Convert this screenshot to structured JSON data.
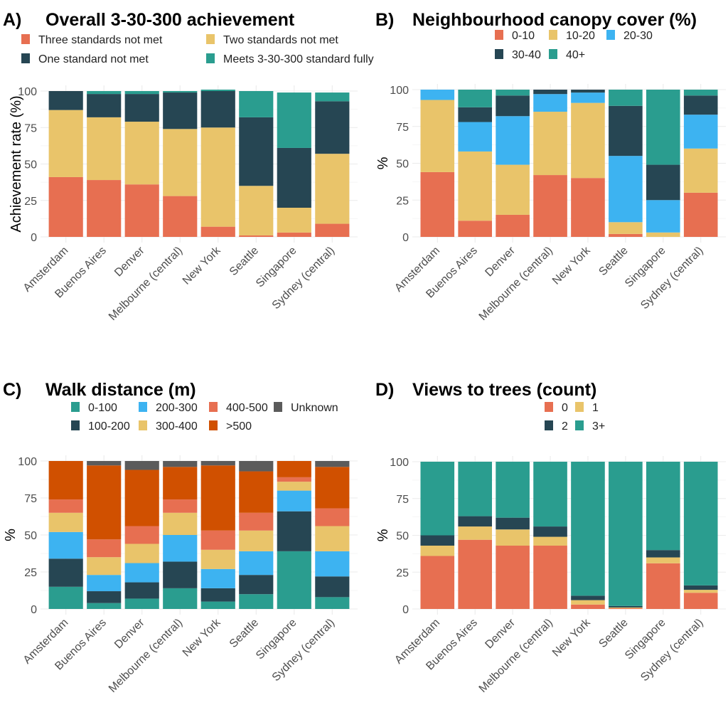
{
  "colors": {
    "salmon": "#E76F51",
    "yellow": "#E9C46A",
    "dark": "#264653",
    "teal": "#2A9D8F",
    "blue": "#3DB3F1",
    "orange": "#D05000",
    "gray": "#5B5B5B"
  },
  "chart_data": [
    {
      "id": "A",
      "type": "bar",
      "stacked": true,
      "panel_letter": "A)",
      "title": "Overall 3-30-300 achievement",
      "xlabel": "",
      "ylabel": "Achievement rate (%)",
      "ylim": [
        0,
        100
      ],
      "yticks": [
        "0",
        "25",
        "50",
        "75",
        "100"
      ],
      "grid": true,
      "legend_position": "top",
      "categories": [
        "Amsterdam",
        "Buenos Aires",
        "Denver",
        "Melbourne (central)",
        "New York",
        "Seattle",
        "Singapore",
        "Sydney (central)"
      ],
      "legend": [
        {
          "label": "Three standards not met",
          "color_key": "salmon"
        },
        {
          "label": "Two standards not met",
          "color_key": "yellow"
        },
        {
          "label": "One standard not met",
          "color_key": "dark"
        },
        {
          "label": "Meets 3-30-300 standard fully",
          "color_key": "teal"
        }
      ],
      "series": [
        {
          "name": "Three standards not met",
          "color_key": "salmon",
          "values": [
            41,
            39,
            36,
            28,
            7,
            1,
            3,
            9
          ]
        },
        {
          "name": "Two standards not met",
          "color_key": "yellow",
          "values": [
            46,
            43,
            43,
            46,
            68,
            34,
            17,
            48
          ]
        },
        {
          "name": "One standard not met",
          "color_key": "dark",
          "values": [
            13,
            16,
            19,
            25,
            25,
            47,
            41,
            36
          ]
        },
        {
          "name": "Meets 3-30-300 standard fully",
          "color_key": "teal",
          "values": [
            0,
            2,
            2,
            1,
            1,
            18,
            38,
            6
          ]
        }
      ]
    },
    {
      "id": "B",
      "type": "bar",
      "stacked": true,
      "panel_letter": "B)",
      "title": "Neighbourhood canopy cover (%)",
      "xlabel": "",
      "ylabel": "%",
      "ylim": [
        0,
        100
      ],
      "yticks": [
        "0",
        "25",
        "50",
        "75",
        "100"
      ],
      "grid": true,
      "legend_position": "top",
      "categories": [
        "Amsterdam",
        "Buenos Aires",
        "Denver",
        "Melbourne (central)",
        "New York",
        "Seattle",
        "Singapore",
        "Sydney (central)"
      ],
      "legend": [
        {
          "label": "0-10",
          "color_key": "salmon"
        },
        {
          "label": "10-20",
          "color_key": "yellow"
        },
        {
          "label": "20-30",
          "color_key": "blue"
        },
        {
          "label": "30-40",
          "color_key": "dark"
        },
        {
          "label": "40+",
          "color_key": "teal"
        }
      ],
      "series": [
        {
          "name": "0-10",
          "color_key": "salmon",
          "values": [
            44,
            11,
            15,
            42,
            40,
            2,
            0,
            30
          ]
        },
        {
          "name": "10-20",
          "color_key": "yellow",
          "values": [
            49,
            47,
            34,
            43,
            51,
            8,
            3,
            30
          ]
        },
        {
          "name": "20-30",
          "color_key": "blue",
          "values": [
            7,
            20,
            33,
            12,
            7,
            45,
            22,
            23
          ]
        },
        {
          "name": "30-40",
          "color_key": "dark",
          "values": [
            0,
            10,
            14,
            3,
            2,
            34,
            24,
            13
          ]
        },
        {
          "name": "40+",
          "color_key": "teal",
          "values": [
            0,
            12,
            4,
            0,
            0,
            11,
            51,
            4
          ]
        }
      ]
    },
    {
      "id": "C",
      "type": "bar",
      "stacked": true,
      "panel_letter": "C)",
      "title": "Walk distance (m)",
      "xlabel": "",
      "ylabel": "%",
      "ylim": [
        0,
        100
      ],
      "yticks": [
        "0",
        "25",
        "50",
        "75",
        "100"
      ],
      "grid": true,
      "legend_position": "top",
      "categories": [
        "Amsterdam",
        "Buenos Aires",
        "Denver",
        "Melbourne (central)",
        "New York",
        "Seattle",
        "Singapore",
        "Sydney (central)"
      ],
      "legend": [
        {
          "label": "0-100",
          "color_key": "teal"
        },
        {
          "label": "200-300",
          "color_key": "blue"
        },
        {
          "label": "400-500",
          "color_key": "salmon"
        },
        {
          "label": "Unknown",
          "color_key": "gray"
        },
        {
          "label": "100-200",
          "color_key": "dark"
        },
        {
          "label": "300-400",
          "color_key": "yellow"
        },
        {
          "label": ">500",
          "color_key": "orange"
        }
      ],
      "series": [
        {
          "name": "0-100",
          "color_key": "teal",
          "values": [
            15,
            4,
            7,
            14,
            5,
            10,
            39,
            8
          ]
        },
        {
          "name": "100-200",
          "color_key": "dark",
          "values": [
            19,
            8,
            11,
            18,
            9,
            13,
            27,
            14
          ]
        },
        {
          "name": "200-300",
          "color_key": "blue",
          "values": [
            18,
            11,
            13,
            18,
            13,
            16,
            14,
            17
          ]
        },
        {
          "name": "300-400",
          "color_key": "yellow",
          "values": [
            13,
            12,
            13,
            15,
            13,
            14,
            6,
            17
          ]
        },
        {
          "name": "400-500",
          "color_key": "salmon",
          "values": [
            9,
            12,
            12,
            9,
            13,
            12,
            3,
            12
          ]
        },
        {
          "name": ">500",
          "color_key": "orange",
          "values": [
            26,
            50,
            38,
            22,
            44,
            28,
            11,
            28
          ]
        },
        {
          "name": "Unknown",
          "color_key": "gray",
          "values": [
            0,
            3,
            6,
            4,
            3,
            7,
            0,
            4
          ]
        }
      ]
    },
    {
      "id": "D",
      "type": "bar",
      "stacked": true,
      "panel_letter": "D)",
      "title": "Views to trees (count)",
      "xlabel": "",
      "ylabel": "%",
      "ylim": [
        0,
        100
      ],
      "yticks": [
        "0",
        "25",
        "50",
        "75",
        "100"
      ],
      "grid": true,
      "legend_position": "top",
      "categories": [
        "Amsterdam",
        "Buenos Aires",
        "Denver",
        "Melbourne (central)",
        "New York",
        "Seattle",
        "Singapore",
        "Sydney (central)"
      ],
      "legend": [
        {
          "label": "0",
          "color_key": "salmon"
        },
        {
          "label": "1",
          "color_key": "yellow"
        },
        {
          "label": "2",
          "color_key": "dark"
        },
        {
          "label": "3+",
          "color_key": "teal"
        }
      ],
      "series": [
        {
          "name": "0",
          "color_key": "salmon",
          "values": [
            36,
            47,
            43,
            43,
            3,
            0.5,
            31,
            11
          ]
        },
        {
          "name": "1",
          "color_key": "yellow",
          "values": [
            7,
            9,
            11,
            6,
            3,
            0.5,
            4,
            2
          ]
        },
        {
          "name": "2",
          "color_key": "dark",
          "values": [
            7,
            7,
            8,
            7,
            3,
            1,
            5,
            3
          ]
        },
        {
          "name": "3+",
          "color_key": "teal",
          "values": [
            50,
            37,
            38,
            44,
            91,
            98,
            60,
            84
          ]
        }
      ]
    }
  ]
}
